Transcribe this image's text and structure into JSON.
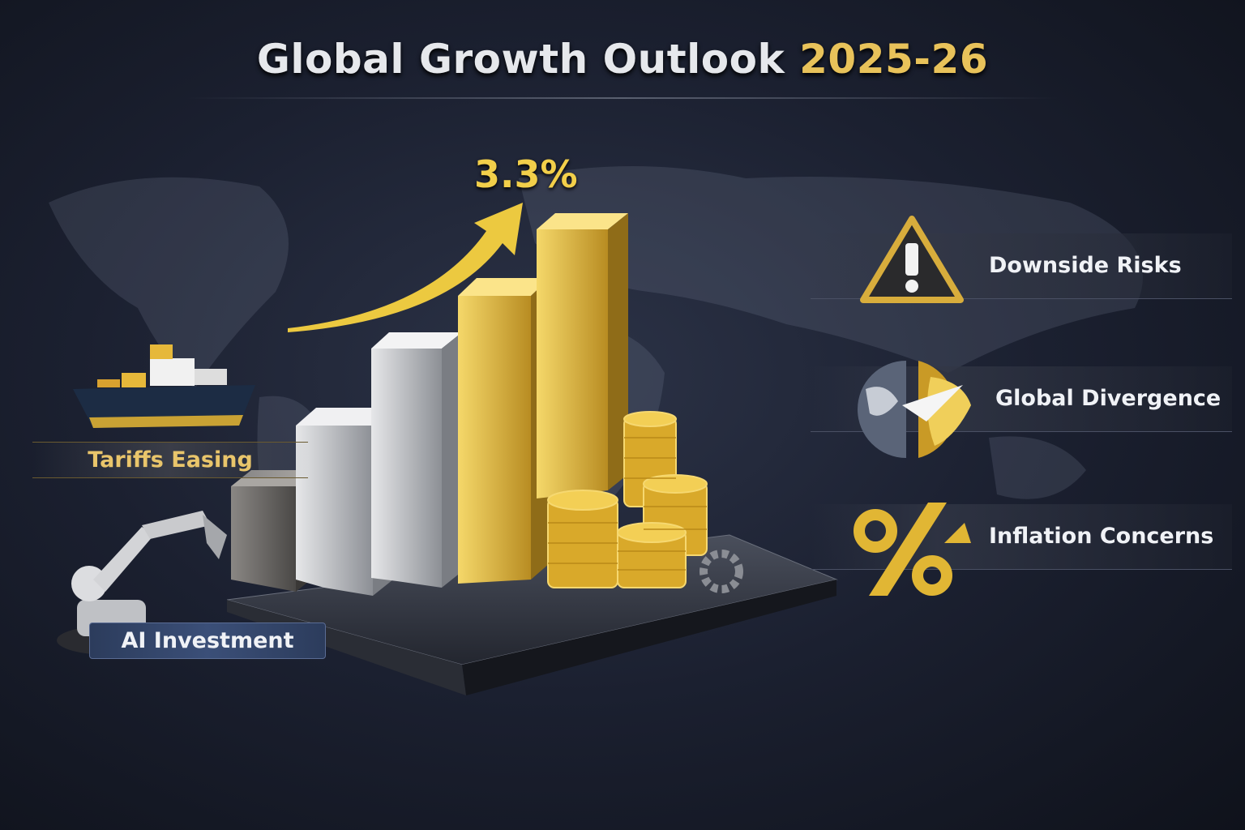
{
  "title": {
    "main": "Global Growth Outlook ",
    "accent": "2025-26"
  },
  "headline_value": "3.3%",
  "left_labels": [
    {
      "label": "Tariffs Easing",
      "icon": "cargo-ship-icon"
    },
    {
      "label": "AI Investment",
      "icon": "robot-arm-icon"
    }
  ],
  "right_items": [
    {
      "label": "Downside Risks",
      "icon": "warning-triangle-icon"
    },
    {
      "label": "Global Divergence",
      "icon": "split-globe-icon"
    },
    {
      "label": "Inflation Concerns",
      "icon": "percent-arrow-icon"
    }
  ],
  "colors": {
    "gold": "#e8c25a",
    "silver": "#c8cacd",
    "background": "#1b2030",
    "label_blue": "#3b4f78"
  }
}
